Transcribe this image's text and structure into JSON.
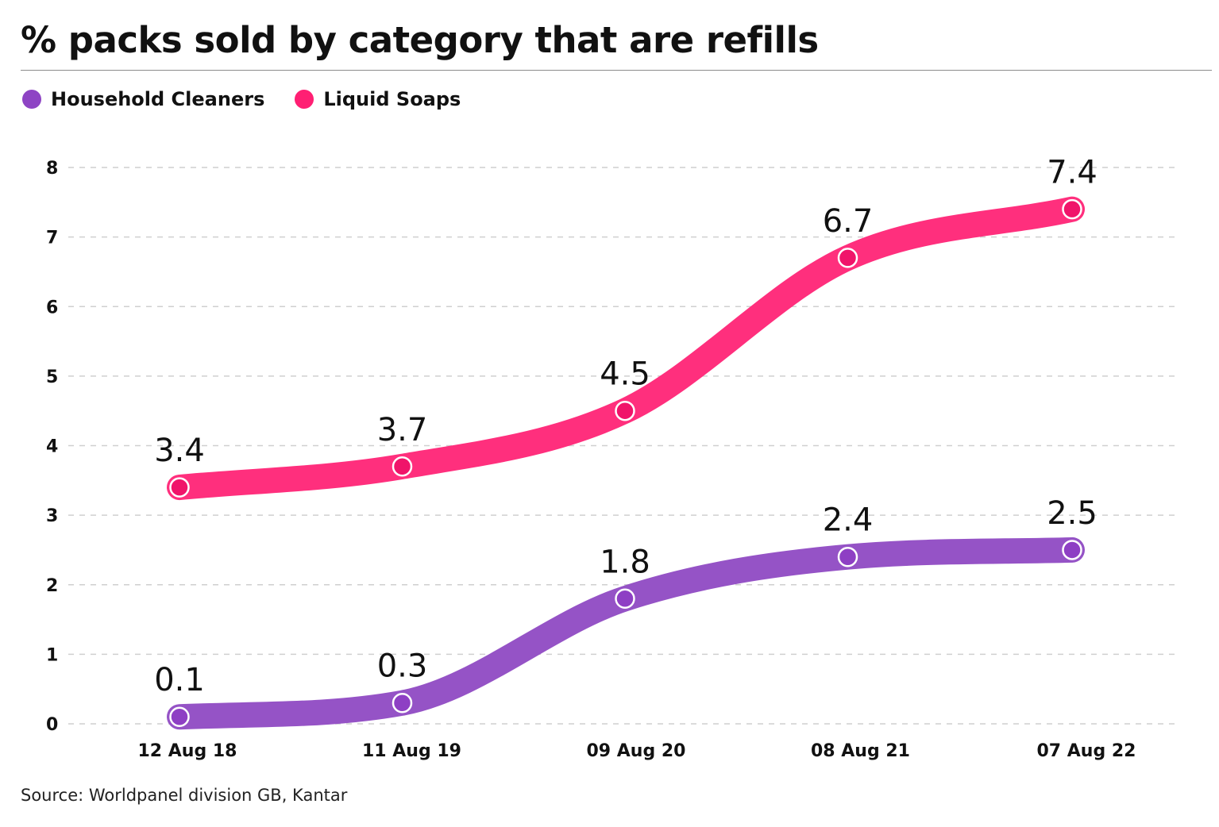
{
  "title": "% packs sold by category that are refills",
  "source": "Source: Worldpanel division GB, Kantar",
  "legend": {
    "items": [
      {
        "label": "Household Cleaners",
        "color": "#8e44c4"
      },
      {
        "label": "Liquid Soaps",
        "color": "#ff1f73"
      }
    ]
  },
  "chart_data": {
    "type": "line",
    "title": "% packs sold by category that are refills",
    "xlabel": "",
    "ylabel": "",
    "categories": [
      "12 Aug 18",
      "11 Aug 19",
      "09 Aug 20",
      "08 Aug 21",
      "07 Aug 22"
    ],
    "series": [
      {
        "name": "Household Cleaners",
        "values": [
          0.1,
          0.3,
          1.8,
          2.4,
          2.5
        ],
        "color": "#9553c6",
        "point_color": "#8e3fc4"
      },
      {
        "name": "Liquid Soaps",
        "values": [
          3.4,
          3.7,
          4.5,
          6.7,
          7.4
        ],
        "color": "#ff2f7d",
        "point_color": "#f0146a"
      }
    ],
    "ylim": [
      0,
      8
    ],
    "yticks": [
      0,
      1,
      2,
      3,
      4,
      5,
      6,
      7,
      8
    ],
    "grid": "horizontal dashed",
    "legend_placement": "top-left",
    "data_labels": true
  }
}
